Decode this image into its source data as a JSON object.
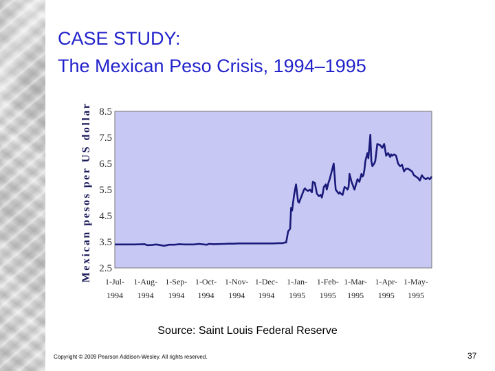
{
  "slide": {
    "title_line1": "CASE STUDY:",
    "title_line2": "The Mexican Peso Crisis, 1994–1995",
    "source": "Source: Saint Louis Federal Reserve",
    "copyright": "Copyright © 2009 Pearson Addison-Wesley. All rights reserved.",
    "page_number": "37"
  },
  "chart_data": {
    "type": "line",
    "title": "",
    "xlabel": "",
    "ylabel": "Mexican pesos per US dollar",
    "ylim": [
      2.5,
      8.5
    ],
    "yticks": [
      "2.5",
      "3.5",
      "4.5",
      "5.5",
      "6.5",
      "7.5",
      "8.5"
    ],
    "xlim": [
      0,
      320
    ],
    "xticks": [
      {
        "d": 0,
        "line1": "1-Jul-",
        "line2": "1994"
      },
      {
        "d": 31,
        "line1": "1-Aug-",
        "line2": "1994"
      },
      {
        "d": 62,
        "line1": "1-Sep-",
        "line2": "1994"
      },
      {
        "d": 92,
        "line1": "1-Oct-",
        "line2": "1994"
      },
      {
        "d": 123,
        "line1": "1-Nov-",
        "line2": "1994"
      },
      {
        "d": 153,
        "line1": "1-Dec-",
        "line2": "1994"
      },
      {
        "d": 184,
        "line1": "1-Jan-",
        "line2": "1995"
      },
      {
        "d": 215,
        "line1": "1-Feb-",
        "line2": "1995"
      },
      {
        "d": 243,
        "line1": "1-Mar-",
        "line2": "1995"
      },
      {
        "d": 274,
        "line1": "1-Apr-",
        "line2": "1995"
      },
      {
        "d": 304,
        "line1": "1-May-",
        "line2": "1995"
      }
    ],
    "series": [
      {
        "name": "Mexican pesos per US dollar",
        "color": "#1a1a7a",
        "x": [
          0,
          10,
          20,
          30,
          33,
          37,
          42,
          48,
          50,
          55,
          60,
          65,
          70,
          75,
          80,
          85,
          90,
          93,
          95,
          100,
          110,
          115,
          120,
          125,
          130,
          140,
          150,
          160,
          165,
          170,
          171,
          172,
          173,
          175,
          177,
          178,
          179,
          180,
          181,
          182,
          183,
          185,
          186,
          187,
          189,
          191,
          192,
          193,
          195,
          197,
          199,
          200,
          202,
          204,
          205,
          206,
          208,
          209,
          210,
          211,
          213,
          214,
          215,
          216,
          217,
          219,
          221,
          223,
          225,
          226,
          227,
          228,
          230,
          232,
          234,
          235,
          236,
          237,
          239,
          240,
          242,
          245,
          247,
          248,
          249,
          250,
          251,
          252,
          253,
          255,
          256,
          258,
          259,
          260,
          262,
          263,
          265,
          268,
          270,
          272,
          274,
          276,
          278,
          279,
          280,
          282,
          284,
          286,
          288,
          290,
          292,
          294,
          296,
          298,
          300,
          302,
          304,
          306,
          308,
          310,
          312,
          314,
          316,
          318,
          320
        ],
        "y": [
          3.4,
          3.4,
          3.4,
          3.41,
          3.37,
          3.38,
          3.4,
          3.36,
          3.35,
          3.39,
          3.39,
          3.41,
          3.4,
          3.4,
          3.4,
          3.42,
          3.4,
          3.39,
          3.42,
          3.41,
          3.42,
          3.43,
          3.43,
          3.44,
          3.44,
          3.44,
          3.44,
          3.44,
          3.45,
          3.45,
          3.47,
          3.48,
          3.47,
          3.9,
          4.0,
          4.8,
          4.7,
          5.0,
          5.3,
          5.5,
          5.7,
          5.05,
          5.0,
          5.1,
          5.3,
          5.5,
          5.55,
          5.5,
          5.45,
          5.5,
          5.4,
          5.8,
          5.75,
          5.35,
          5.3,
          5.25,
          5.3,
          5.2,
          5.35,
          5.6,
          5.7,
          5.5,
          5.65,
          5.8,
          5.9,
          6.2,
          6.5,
          5.5,
          5.4,
          5.35,
          5.4,
          5.35,
          5.3,
          5.6,
          5.55,
          5.5,
          5.6,
          6.1,
          5.8,
          5.7,
          5.5,
          5.9,
          5.8,
          5.95,
          6.1,
          6.0,
          6.05,
          6.25,
          6.6,
          6.9,
          6.7,
          7.6,
          6.6,
          6.4,
          6.5,
          6.6,
          7.25,
          7.2,
          7.1,
          7.25,
          6.8,
          6.9,
          6.75,
          6.85,
          6.8,
          6.85,
          6.8,
          6.5,
          6.4,
          6.45,
          6.2,
          6.3,
          6.3,
          6.25,
          6.2,
          6.05,
          6.0,
          5.95,
          5.85,
          6.05,
          5.95,
          5.9,
          5.95,
          5.9,
          6.0
        ]
      }
    ],
    "grid": false,
    "background_color": "#c8c8f5"
  }
}
